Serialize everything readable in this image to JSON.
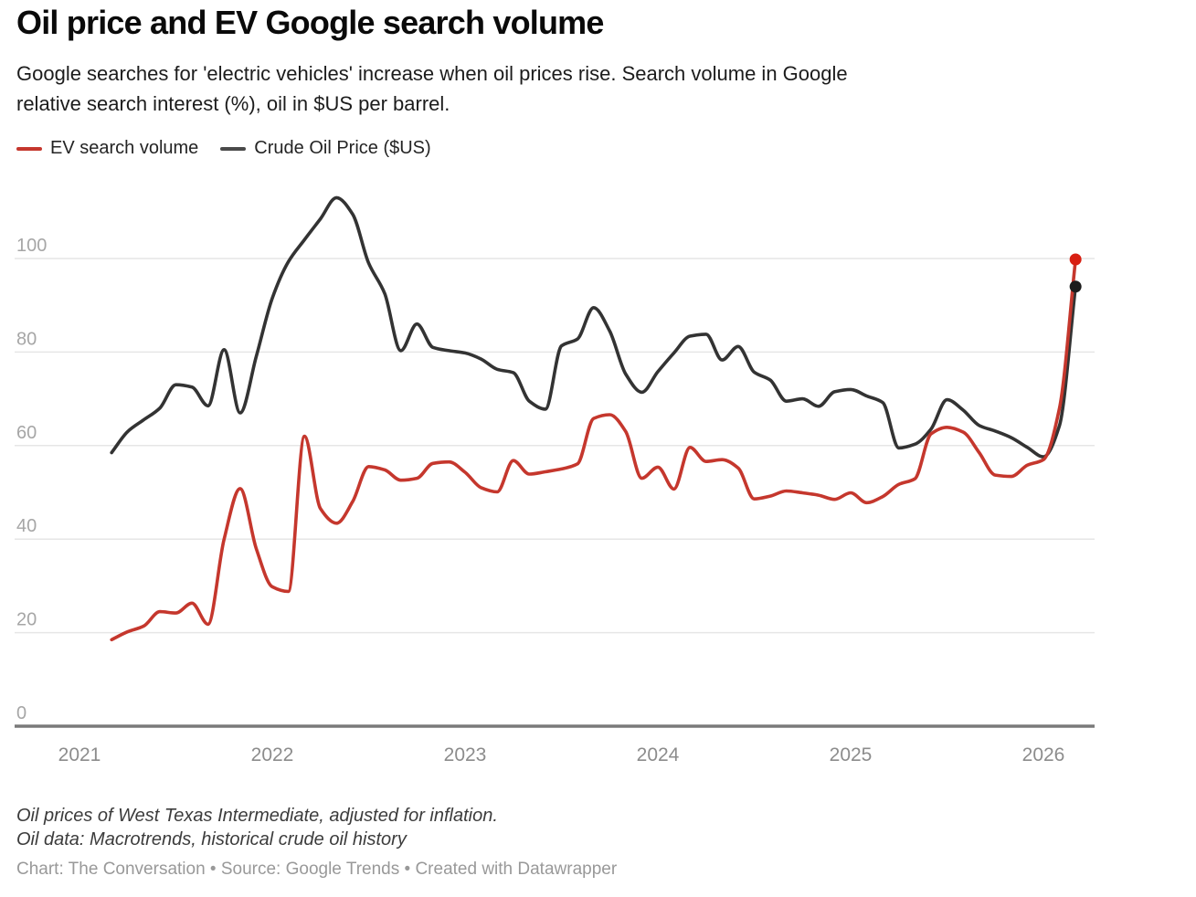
{
  "header": {
    "title": "Oil price and EV Google search volume",
    "subtitle": "Google searches for 'electric vehicles' increase when oil prices rise. Search volume in Google\nrelative search interest (%), oil in $US per barrel."
  },
  "footer": {
    "note1": "Oil prices of West Texas Intermediate, adjusted for inflation.",
    "note2": "Oil data: Macrotrends, historical crude oil history",
    "attribution": "Chart: The Conversation • Source: Google Trends • Created with Datawrapper"
  },
  "colors": {
    "ev_line": "#c5372d",
    "ev_dot": "#d81f12",
    "oil_line": "#333333",
    "oil_dot": "#1c1c1c",
    "gridline": "#e6e6e6",
    "axis_line": "#7a7a7a",
    "y_tick_text": "#a6a6a6",
    "x_tick_text": "#8c8c8c"
  },
  "chart_data": {
    "type": "line",
    "title": "Oil price and EV Google search volume",
    "x_start": "2021-03",
    "x_interval": "monthly",
    "x_tick_labels": [
      "2021",
      "2022",
      "2023",
      "2024",
      "2025",
      "2026"
    ],
    "y_tick_labels": [
      0,
      20,
      40,
      60,
      80,
      100
    ],
    "ylim": [
      0,
      115
    ],
    "grid": "horizontal",
    "legend_position": "top-left",
    "series": [
      {
        "name": "EV search volume",
        "color": "#c5372d",
        "dot_color": "#d81f12",
        "end_dot": true,
        "values": [
          18.5,
          20.2,
          21.4,
          24.5,
          24.2,
          26.3,
          21.8,
          40,
          50.8,
          38,
          29.8,
          28.8,
          62,
          46.5,
          43.4,
          48,
          55.5,
          54.8,
          52.6,
          53,
          56.2,
          56.5,
          54.3,
          51,
          50.1,
          56.8,
          53.9,
          54.4,
          55,
          56.1,
          65.8,
          66.6,
          63,
          53,
          55.4,
          50.7,
          59.6,
          56.6,
          57,
          55.2,
          48.6,
          49.2,
          50.3,
          49.9,
          49.4,
          48.5,
          49.9,
          47.8,
          49.1,
          51.7,
          52.9,
          62.5,
          63.9,
          62.9,
          58.5,
          53.7,
          53.4,
          55.8,
          57,
          68,
          99.8
        ]
      },
      {
        "name": "Crude Oil Price ($US)",
        "color": "#333333",
        "dot_color": "#1c1c1c",
        "end_dot": true,
        "values": [
          58.5,
          63,
          65.5,
          68,
          73,
          72.5,
          68.5,
          80.5,
          67,
          79,
          91.5,
          99.3,
          104,
          108.5,
          113,
          109.5,
          99,
          92.5,
          80.3,
          86,
          81,
          80.3,
          79.8,
          78.5,
          76.3,
          75.6,
          69.5,
          67.8,
          81.3,
          82.8,
          89.5,
          84.5,
          75.3,
          71.4,
          75.8,
          79.8,
          83.4,
          83.8,
          78.3,
          81.2,
          75.7,
          74,
          69.5,
          70,
          68.4,
          71.5,
          72,
          70.6,
          69.2,
          59.5,
          60.3,
          63.5,
          69.8,
          67.6,
          64.3,
          63.1,
          61.7,
          59.6,
          57.6,
          64.3,
          94
        ]
      }
    ]
  }
}
